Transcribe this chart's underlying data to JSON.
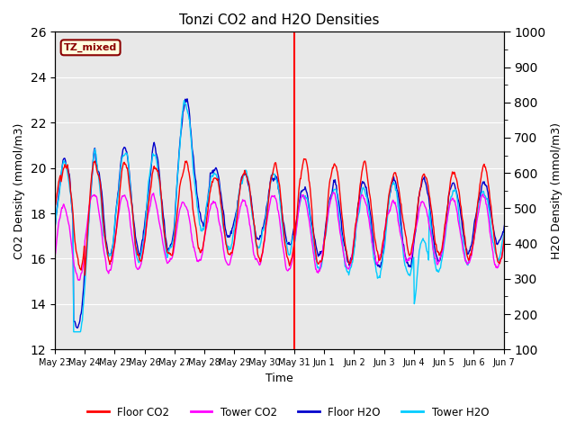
{
  "title": "Tonzi CO2 and H2O Densities",
  "xlabel": "Time",
  "ylabel_left": "CO2 Density (mmol/m3)",
  "ylabel_right": "H2O Density (mmol/m3)",
  "ylim_left": [
    12,
    26
  ],
  "ylim_right": [
    100,
    1000
  ],
  "yticks_left": [
    12,
    14,
    16,
    18,
    20,
    22,
    24,
    26
  ],
  "yticks_right": [
    100,
    200,
    300,
    400,
    500,
    600,
    700,
    800,
    900,
    1000
  ],
  "annotation_label": "TZ_mixed",
  "colors": {
    "floor_co2": "#FF0000",
    "tower_co2": "#FF00FF",
    "floor_h2o": "#0000CC",
    "tower_h2o": "#00CCFF"
  },
  "legend_labels": [
    "Floor CO2",
    "Tower CO2",
    "Floor H2O",
    "Tower H2O"
  ],
  "background_color": "#E8E8E8",
  "grid_color": "#FFFFFF",
  "tick_label_dates": [
    "May 23",
    "May 24",
    "May 25",
    "May 26",
    "May 27",
    "May 28",
    "May 29",
    "May 30",
    "May 31",
    "Jun 1",
    "Jun 2",
    "Jun 3",
    "Jun 4",
    "Jun 5",
    "Jun 6",
    "Jun 7"
  ],
  "vline_day": 8
}
